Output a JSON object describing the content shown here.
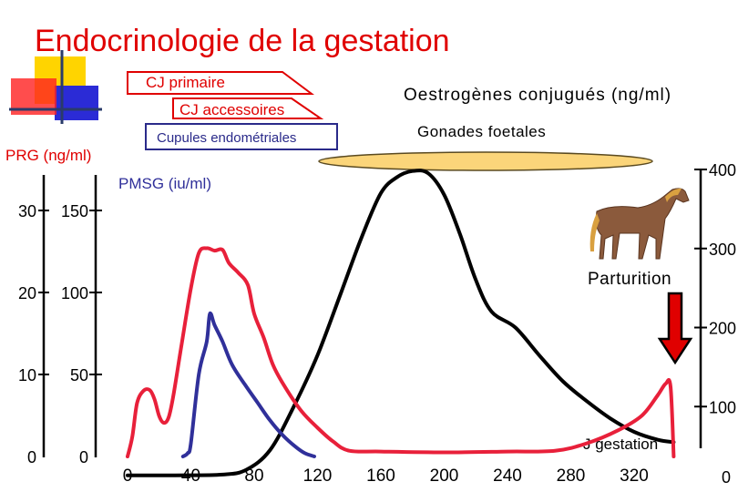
{
  "slide": {
    "title": "Endocrinologie de la gestation",
    "title_color": "#e00000"
  },
  "boxes": {
    "cj_primaire": "CJ primaire",
    "cj_accessoires": "CJ accessoires",
    "cupules": "Cupules endométriales",
    "gonades": "Gonades foetales"
  },
  "labels": {
    "prg_axis": "PRG (ng/ml)",
    "pmsg_axis": "PMSG (iu/ml)",
    "oestro_axis": "Oestrogènes conjugués (ng/ml)",
    "parturition": "Parturition",
    "j_gestation": "J gestation"
  },
  "icons": {
    "decoration": "colored-squares-icon",
    "horse": "horse-icon",
    "arrow": "down-arrow-icon"
  },
  "colors": {
    "progesterone": "#e8203a",
    "pmsg": "#30309a",
    "oestrogenes": "#000000",
    "gonades_fill": "#fbd57a",
    "arrow": "#e00000"
  },
  "chart_data": {
    "type": "line",
    "x_axis": {
      "label": "J gestation",
      "ticks": [
        0,
        40,
        80,
        120,
        160,
        200,
        240,
        280,
        320
      ],
      "range": [
        0,
        350
      ]
    },
    "y_axes": {
      "prg": {
        "label": "PRG (ng/ml)",
        "ticks": [
          0,
          10,
          20,
          30
        ],
        "range": [
          0,
          30
        ]
      },
      "pmsg": {
        "label": "PMSG (iu/ml)",
        "ticks": [
          0,
          50,
          100,
          150
        ],
        "range": [
          0,
          150
        ]
      },
      "oestrogenes": {
        "label": "Oestrogènes conjugués (ng/ml)",
        "ticks": [
          0,
          100,
          200,
          300,
          400
        ],
        "range": [
          0,
          400
        ],
        "side": "right"
      }
    },
    "series": [
      {
        "axis": "prg",
        "color": "#e8203a",
        "points": [
          [
            0,
            0
          ],
          [
            3,
            2.4
          ],
          [
            6,
            6.5
          ],
          [
            10,
            8.0
          ],
          [
            14,
            8.1
          ],
          [
            17,
            7.0
          ],
          [
            20,
            4.9
          ],
          [
            23,
            4.1
          ],
          [
            26,
            4.8
          ],
          [
            29,
            7.5
          ],
          [
            34,
            13.5
          ],
          [
            40,
            20.5
          ],
          [
            45,
            24.8
          ],
          [
            50,
            25.4
          ],
          [
            55,
            25.1
          ],
          [
            60,
            25.2
          ],
          [
            64,
            23.6
          ],
          [
            70,
            22.4
          ],
          [
            76,
            20.9
          ],
          [
            80,
            17.4
          ],
          [
            86,
            14.5
          ],
          [
            92,
            11.1
          ],
          [
            100,
            8.3
          ],
          [
            110,
            5.5
          ],
          [
            120,
            3.5
          ],
          [
            130,
            1.8
          ],
          [
            140,
            0.7
          ],
          [
            160,
            0.6
          ],
          [
            200,
            0.5
          ],
          [
            240,
            0.6
          ],
          [
            270,
            0.7
          ],
          [
            290,
            1.6
          ],
          [
            310,
            3.2
          ],
          [
            325,
            5.0
          ],
          [
            335,
            7.5
          ],
          [
            340,
            8.9
          ],
          [
            343,
            8.5
          ],
          [
            345,
            0
          ]
        ]
      },
      {
        "axis": "pmsg",
        "color": "#30309a",
        "points": [
          [
            35,
            0
          ],
          [
            38,
            2
          ],
          [
            40,
            8
          ],
          [
            45,
            50
          ],
          [
            50,
            70
          ],
          [
            52,
            87
          ],
          [
            55,
            80
          ],
          [
            60,
            70
          ],
          [
            66,
            56
          ],
          [
            74,
            44
          ],
          [
            82,
            33
          ],
          [
            90,
            22
          ],
          [
            98,
            13
          ],
          [
            106,
            6
          ],
          [
            112,
            2
          ],
          [
            118,
            0
          ]
        ]
      },
      {
        "axis": "oestrogenes",
        "color": "#000000",
        "points": [
          [
            0,
            13
          ],
          [
            30,
            13
          ],
          [
            60,
            14
          ],
          [
            75,
            20
          ],
          [
            90,
            45
          ],
          [
            105,
            100
          ],
          [
            120,
            165
          ],
          [
            135,
            245
          ],
          [
            148,
            315
          ],
          [
            160,
            370
          ],
          [
            170,
            390
          ],
          [
            180,
            398
          ],
          [
            190,
            395
          ],
          [
            200,
            368
          ],
          [
            210,
            318
          ],
          [
            220,
            260
          ],
          [
            230,
            220
          ],
          [
            245,
            200
          ],
          [
            260,
            165
          ],
          [
            275,
            132
          ],
          [
            290,
            107
          ],
          [
            305,
            85
          ],
          [
            320,
            68
          ],
          [
            335,
            58
          ],
          [
            345,
            55
          ]
        ]
      }
    ]
  }
}
